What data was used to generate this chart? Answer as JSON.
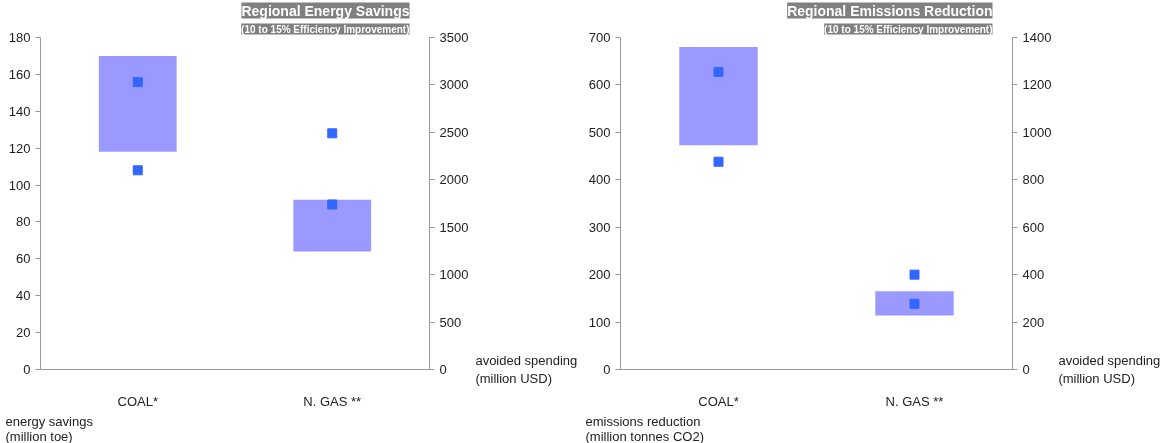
{
  "chart_data": [
    {
      "type": "bar",
      "title": "Regional Energy Savings",
      "subtitle": "(10 to 15% Efficiency Improvement)",
      "categories": [
        "COAL*",
        "N. GAS **"
      ],
      "ylabel": "energy savings\n(million toe)",
      "y2label": "avoided spending\n(million USD)",
      "ylim": [
        0,
        180
      ],
      "yticks": [
        0,
        20,
        40,
        60,
        80,
        100,
        120,
        140,
        160,
        180
      ],
      "y2lim": [
        0,
        3500
      ],
      "y2ticks": [
        0,
        500,
        1000,
        1500,
        2000,
        2500,
        3000,
        3500
      ],
      "grid": false,
      "marker": "square",
      "series": [
        {
          "color": "#9999ff",
          "base": [
            118,
            64
          ],
          "values": [
            52,
            28
          ]
        },
        {
          "type": "scatter",
          "axis": "y2",
          "color": "#3366ff",
          "values": [
            3030,
            2490
          ]
        },
        {
          "type": "scatter",
          "axis": "y2",
          "color": "#3366ff",
          "values": [
            2100,
            1740
          ]
        }
      ]
    },
    {
      "type": "bar",
      "title": "Regional Emissions Reduction",
      "subtitle": "(10 to 15% Efficiency Improvement)",
      "categories": [
        "COAL*",
        "N. GAS **"
      ],
      "ylabel": "emissions reduction\n(million tonnes CO2)",
      "y2label": "avoided spending\n(million USD)",
      "ylim": [
        0,
        700
      ],
      "yticks": [
        0,
        100,
        200,
        300,
        400,
        500,
        600,
        700
      ],
      "y2lim": [
        0,
        1400
      ],
      "y2ticks": [
        0,
        200,
        400,
        600,
        800,
        1000,
        1200,
        1400
      ],
      "grid": false,
      "marker": "square",
      "series": [
        {
          "color": "#9999ff",
          "base": [
            473,
            114
          ],
          "values": [
            207,
            51
          ]
        },
        {
          "type": "scatter",
          "axis": "y2",
          "color": "#3366ff",
          "values": [
            1255,
            400
          ]
        },
        {
          "type": "scatter",
          "axis": "y2",
          "color": "#3366ff",
          "values": [
            876,
            277
          ]
        }
      ]
    }
  ]
}
